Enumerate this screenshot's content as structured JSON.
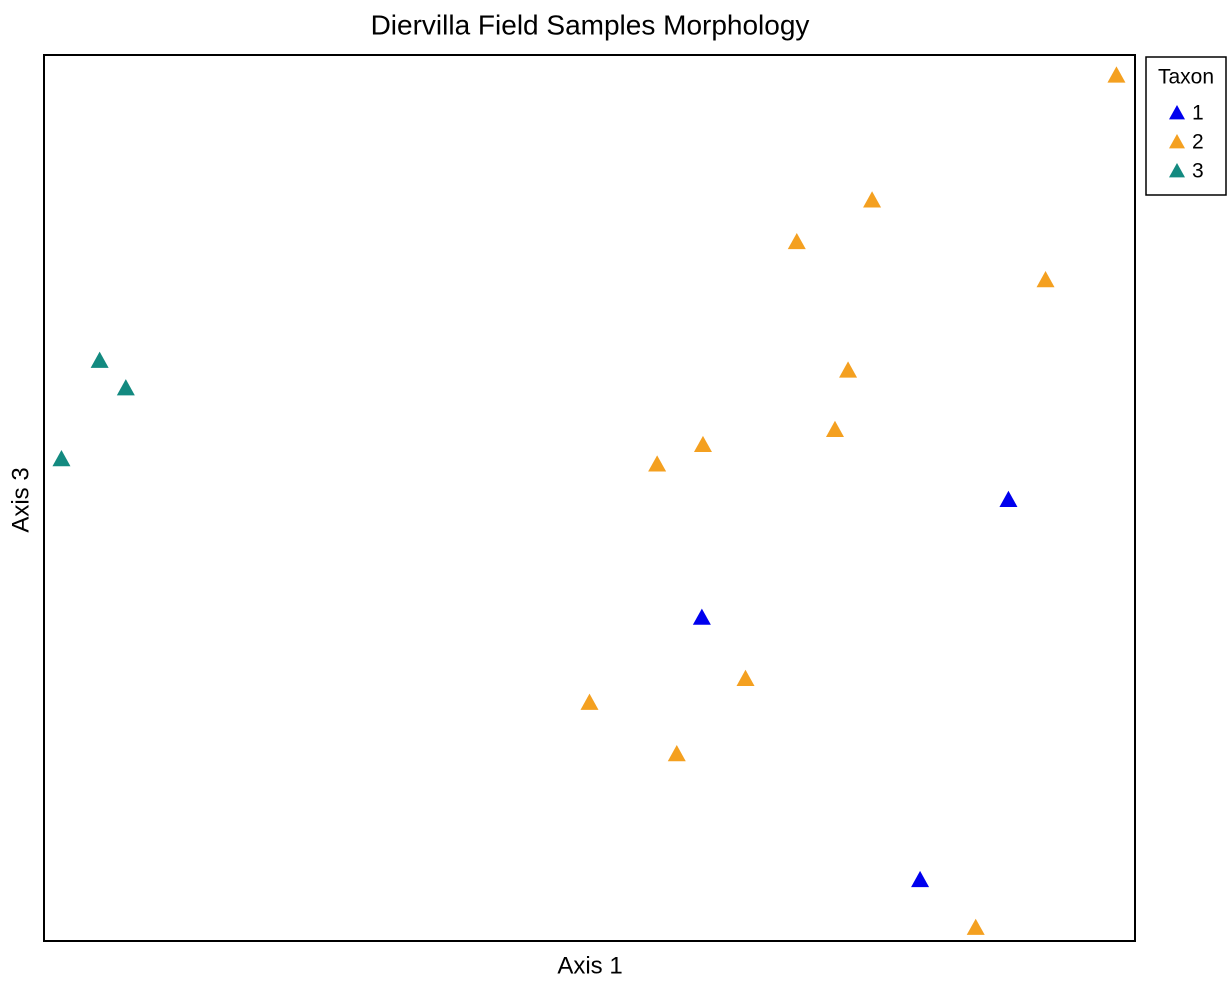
{
  "chart_data": {
    "type": "scatter",
    "title": "Diervilla Field Samples Morphology",
    "x_label": "Axis 1",
    "y_label": "Axis 3",
    "legend_title": "Taxon",
    "legend": "outside-top-right",
    "xlim": [
      0,
      100
    ],
    "ylim": [
      0,
      100
    ],
    "series": [
      {
        "name": "1",
        "color": "#0000ee",
        "x": [
          88.4,
          60.3,
          80.3
        ],
        "values": [
          49.8,
          36.5,
          6.9
        ]
      },
      {
        "name": "2",
        "color": "#f4a020",
        "x": [
          98.3,
          75.9,
          69.0,
          91.8,
          73.7,
          72.5,
          60.4,
          56.2,
          64.3,
          50.0,
          58.0,
          85.4
        ],
        "values": [
          97.7,
          83.6,
          78.9,
          74.6,
          64.4,
          57.7,
          56.0,
          53.8,
          29.6,
          26.9,
          21.1,
          1.5
        ]
      },
      {
        "name": "3",
        "color": "#138a80",
        "x": [
          5.1,
          7.5,
          1.6
        ],
        "values": [
          65.5,
          62.4,
          54.4
        ]
      }
    ]
  }
}
